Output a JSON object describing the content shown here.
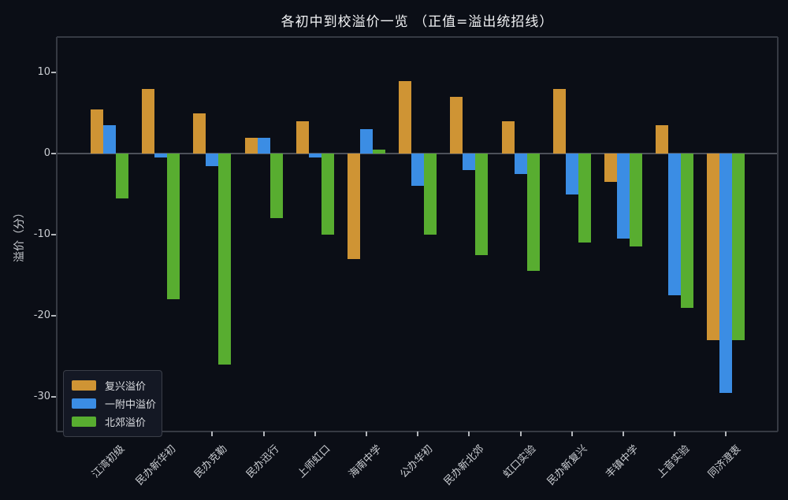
{
  "title": "各初中到校溢价一览 （正值=溢出统招线）",
  "colors": {
    "background": "#0b0e16",
    "fuxing_orange": "#cf9434",
    "yifuzhong_blue": "#3b8de4",
    "beijiao_green": "#58ad30",
    "zero_line": "#4d515a",
    "spine": "#363a43",
    "tick_label": "#cbced3"
  },
  "chart_data": {
    "type": "bar",
    "title": "各初中到校溢价一览 （正值=溢出统招线）",
    "categories": [
      "江湾初级",
      "民办新华初",
      "民办克勒",
      "民办迅行",
      "上师虹口",
      "海南中学",
      "公办华初",
      "民办新北郊",
      "虹口实验",
      "民办新复兴",
      "丰镇中学",
      "上音实验",
      "同济澄衷"
    ],
    "series": [
      {
        "name": "复兴溢价",
        "color": "#cf9434",
        "values": [
          5.5,
          8,
          5,
          2,
          4,
          -13,
          9,
          7,
          4,
          8,
          -3.5,
          3.5,
          -23
        ]
      },
      {
        "name": "一附中溢价",
        "color": "#3b8de4",
        "values": [
          3.5,
          -0.5,
          -1.5,
          2,
          -0.5,
          3,
          -4,
          -2,
          -2.5,
          -5,
          -10.5,
          -17.5,
          -29.5
        ]
      },
      {
        "name": "北郊溢价",
        "color": "#58ad30",
        "values": [
          -5.5,
          -18,
          -26,
          -8,
          -10,
          0.5,
          -10,
          -12.5,
          -14.5,
          -11,
          -11.5,
          -19,
          -23
        ]
      }
    ],
    "xlabel": "",
    "ylabel": "溢价（分）",
    "yticks": [
      10,
      0,
      -10,
      -20,
      -30
    ],
    "ylim": [
      -34.3,
      14.4
    ],
    "grid": false,
    "legend_position": "lower left"
  }
}
